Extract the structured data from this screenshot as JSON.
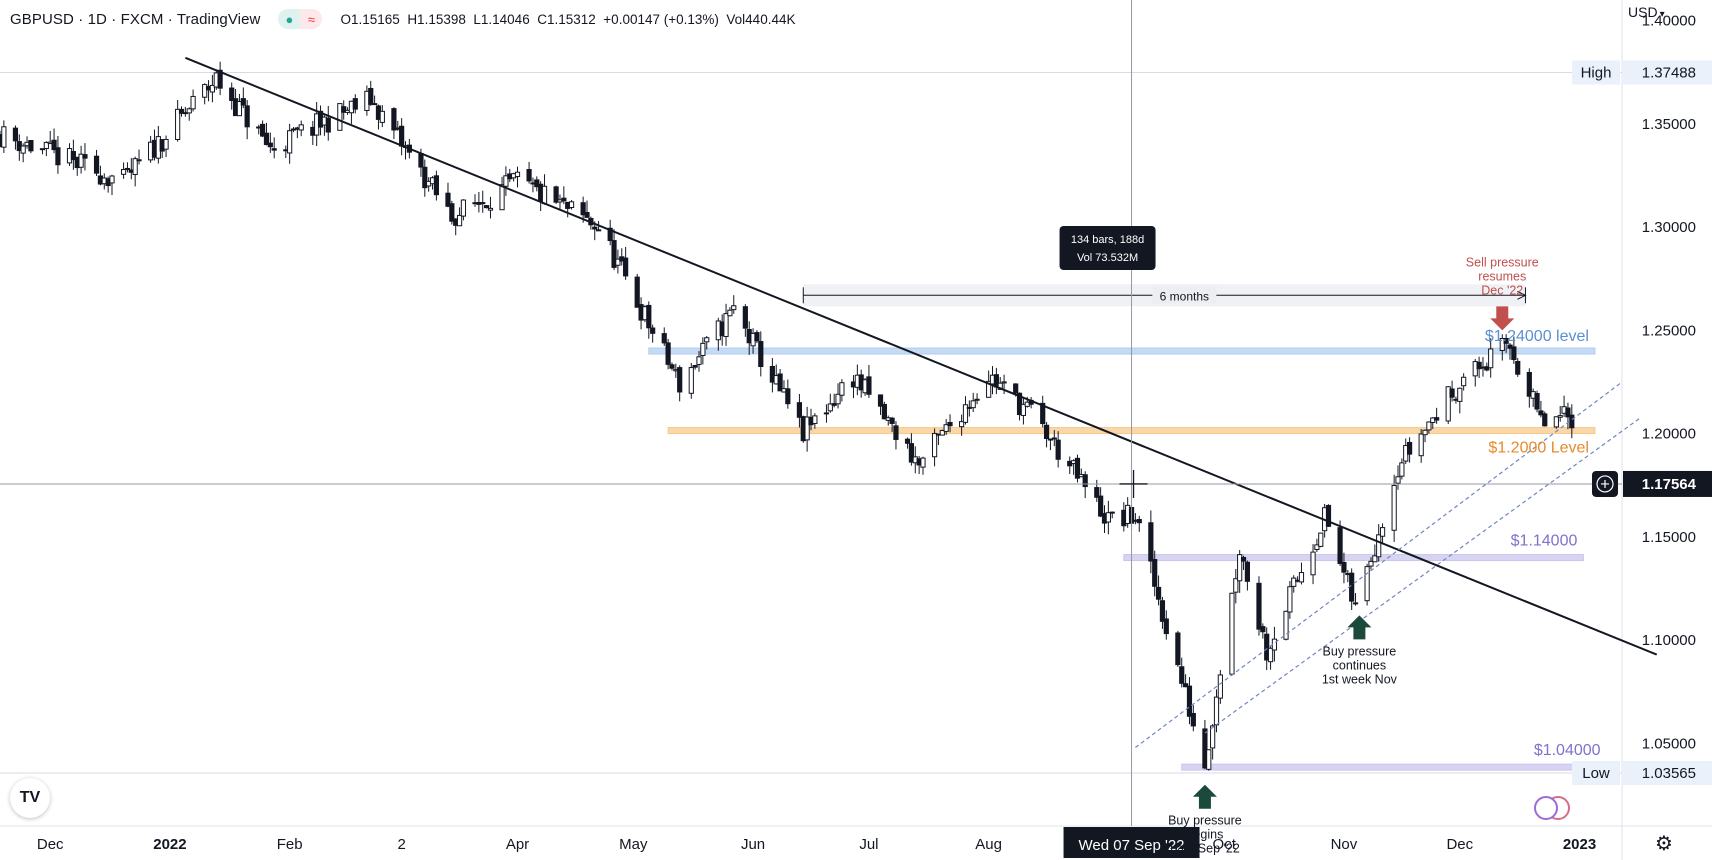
{
  "legend": {
    "symbol": "GBPUSD · 1D · FXCM · TradingView",
    "open": "O1.15165",
    "high": "H1.15398",
    "low": "L1.14046",
    "close": "C1.15312",
    "change": "+0.00147 (+0.13%)",
    "volume": "Vol440.44K"
  },
  "toolbar": {
    "currency": "USD",
    "logo": "TV",
    "settings_icon": "gear-icon",
    "compare_icon": "compare-icon"
  },
  "colors": {
    "up": "#ffffff",
    "down": "#131722",
    "trendline": "#131722",
    "blue_level": "#b2cdf0",
    "orange_level": "#f7c98b",
    "purple_level": "#c9c5ee",
    "annotation_red": "#c0504d",
    "annotation_green": "#1b4a3c"
  },
  "chart_data": {
    "type": "candlestick",
    "yaxis": {
      "range": [
        1.01,
        1.41
      ],
      "ticks": [
        "1.40000",
        "1.35000",
        "1.30000",
        "1.25000",
        "1.20000",
        "1.15000",
        "1.10000",
        "1.05000"
      ],
      "tick_values": [
        1.4,
        1.35,
        1.3,
        1.25,
        1.2,
        1.15,
        1.1,
        1.05
      ]
    },
    "xaxis": {
      "start": "2021-11-18",
      "end": "2023-01-12",
      "labels": [
        {
          "text": "Dec",
          "date": "2021-12-01"
        },
        {
          "text": "2022",
          "date": "2022-01-01",
          "bold": true
        },
        {
          "text": "Feb",
          "date": "2022-02-01"
        },
        {
          "text": "2",
          "date": "2022-03-02"
        },
        {
          "text": "Apr",
          "date": "2022-04-01"
        },
        {
          "text": "May",
          "date": "2022-05-01"
        },
        {
          "text": "Jun",
          "date": "2022-06-01"
        },
        {
          "text": "Jul",
          "date": "2022-07-01"
        },
        {
          "text": "Aug",
          "date": "2022-08-01"
        },
        {
          "text": "Oct",
          "date": "2022-10-01"
        },
        {
          "text": "Nov",
          "date": "2022-11-01"
        },
        {
          "text": "Dec",
          "date": "2022-12-01"
        },
        {
          "text": "2023",
          "date": "2023-01-01",
          "bold": true
        }
      ]
    },
    "price_path": [
      {
        "date": "2021-11-18",
        "price": 1.345
      },
      {
        "date": "2021-12-20",
        "price": 1.322
      },
      {
        "date": "2022-01-13",
        "price": 1.372
      },
      {
        "date": "2022-01-27",
        "price": 1.338
      },
      {
        "date": "2022-02-22",
        "price": 1.362
      },
      {
        "date": "2022-03-15",
        "price": 1.305
      },
      {
        "date": "2022-04-01",
        "price": 1.322
      },
      {
        "date": "2022-04-22",
        "price": 1.3
      },
      {
        "date": "2022-05-13",
        "price": 1.224
      },
      {
        "date": "2022-05-27",
        "price": 1.26
      },
      {
        "date": "2022-06-14",
        "price": 1.2
      },
      {
        "date": "2022-06-27",
        "price": 1.228
      },
      {
        "date": "2022-07-14",
        "price": 1.185
      },
      {
        "date": "2022-08-01",
        "price": 1.228
      },
      {
        "date": "2022-08-12",
        "price": 1.21
      },
      {
        "date": "2022-09-01",
        "price": 1.158
      },
      {
        "date": "2022-09-08",
        "price": 1.16
      },
      {
        "date": "2022-09-26",
        "price": 1.04
      },
      {
        "date": "2022-10-05",
        "price": 1.145
      },
      {
        "date": "2022-10-12",
        "price": 1.095
      },
      {
        "date": "2022-10-27",
        "price": 1.16
      },
      {
        "date": "2022-11-04",
        "price": 1.115
      },
      {
        "date": "2022-11-15",
        "price": 1.185
      },
      {
        "date": "2022-12-01",
        "price": 1.225
      },
      {
        "date": "2022-12-14",
        "price": 1.243
      },
      {
        "date": "2022-12-22",
        "price": 1.205
      },
      {
        "date": "2022-12-30",
        "price": 1.208
      }
    ],
    "extremes": {
      "high": {
        "label": "High",
        "value": "1.37488",
        "price": 1.37488
      },
      "low": {
        "label": "Low",
        "value": "1.03565",
        "price": 1.03565
      }
    },
    "crosshair": {
      "date": "2022-09-07",
      "price": 1.17564,
      "date_label": "Wed 07 Sep '22",
      "price_label": "1.17564"
    },
    "measure": {
      "line1": "134 bars, 188d",
      "line2": "Vol 73.532M",
      "range_label": "6 months",
      "from": "2022-06-14",
      "to": "2022-12-18",
      "price": 1.267
    },
    "trendlines": [
      {
        "name": "main-downtrend",
        "from": {
          "date": "2022-01-05",
          "price": 1.382
        },
        "to": {
          "date": "2023-01-21",
          "price": 1.093
        },
        "style": "solid"
      },
      {
        "name": "support-upper",
        "from": {
          "date": "2022-09-26",
          "price": 1.055
        },
        "to": {
          "date": "2023-01-17",
          "price": 1.208
        },
        "style": "dashed"
      },
      {
        "name": "support-lower",
        "from": {
          "date": "2022-09-08",
          "price": 1.048
        },
        "to": {
          "date": "2023-01-12",
          "price": 1.225
        },
        "style": "dashed"
      }
    ],
    "levels": [
      {
        "name": "level-124",
        "price": 1.24,
        "from": "2022-05-05",
        "to": "2023-01-05",
        "color": "#b2cdf0",
        "label": "$1.24000 level",
        "label_color": "#5b8fd0"
      },
      {
        "name": "level-120",
        "price": 1.2015,
        "from": "2022-05-10",
        "to": "2023-01-05",
        "color": "#f7c98b",
        "label": "$1.2000 Level",
        "label_color": "#e8892b"
      },
      {
        "name": "level-114",
        "price": 1.14,
        "from": "2022-09-05",
        "to": "2023-01-02",
        "color": "#c9c5ee",
        "label": "$1.14000",
        "label_color": "#7d73c9"
      },
      {
        "name": "level-104",
        "price": 1.0385,
        "from": "2022-09-20",
        "to": "2023-01-08",
        "color": "#c9c5ee",
        "label": "$1.04000",
        "label_color": "#7d73c9"
      }
    ],
    "annotations": [
      {
        "name": "sell-pressure",
        "lines": [
          "Sell pressure",
          "resumes",
          "Dec '22"
        ],
        "date": "2022-12-12",
        "price": 1.25,
        "direction": "down",
        "color": "#c0504d"
      },
      {
        "name": "buy-pressure-nov",
        "lines": [
          "Buy pressure",
          "continues",
          "1st week Nov"
        ],
        "date": "2022-11-05",
        "price": 1.112,
        "direction": "up",
        "color": "#1b4a3c"
      },
      {
        "name": "buy-pressure-sep",
        "lines": [
          "Buy pressure",
          "begins",
          "Late Sep '22"
        ],
        "date": "2022-09-26",
        "price": 1.03,
        "direction": "up",
        "color": "#1b4a3c"
      }
    ]
  }
}
